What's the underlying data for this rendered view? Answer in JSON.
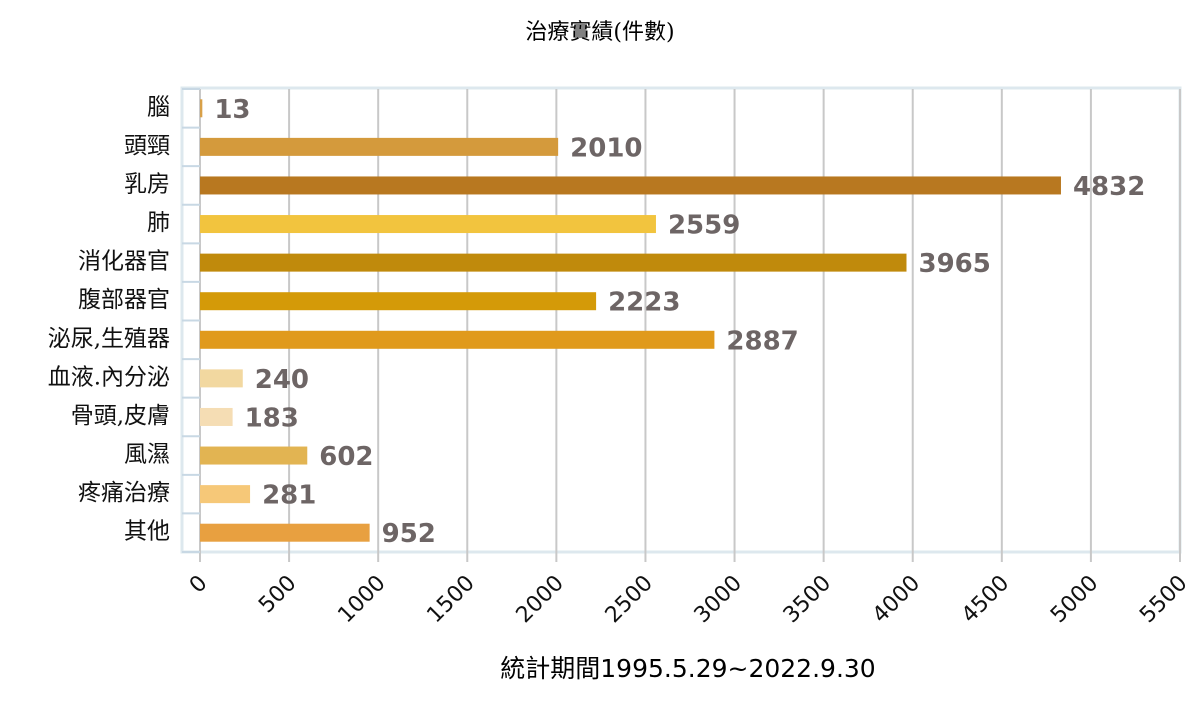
{
  "chart_data": {
    "type": "bar",
    "orientation": "horizontal",
    "title": "治療實績(件數)",
    "xlabel": "統計期間1995.5.29~2022.9.30",
    "categories": [
      "腦",
      "頭頸",
      "乳房",
      "肺",
      "消化器官",
      "腹部器官",
      "泌尿,生殖器",
      "血液.內分泌",
      "骨頭,皮膚",
      "風濕",
      "疼痛治療",
      "其他"
    ],
    "values": [
      13,
      2010,
      4832,
      2559,
      3965,
      2223,
      2887,
      240,
      183,
      602,
      281,
      952
    ],
    "colors": [
      "#d8a048",
      "#d49a3c",
      "#b87820",
      "#f2c43e",
      "#c08a0c",
      "#d49a08",
      "#e09a1c",
      "#f2d8a0",
      "#f5ddb4",
      "#e2b452",
      "#f6c878",
      "#e8a040"
    ],
    "xlim": [
      0,
      5500
    ],
    "xticks": [
      0,
      500,
      1000,
      1500,
      2000,
      2500,
      3000,
      3500,
      4000,
      4500,
      5000,
      5500
    ],
    "grid": true
  }
}
